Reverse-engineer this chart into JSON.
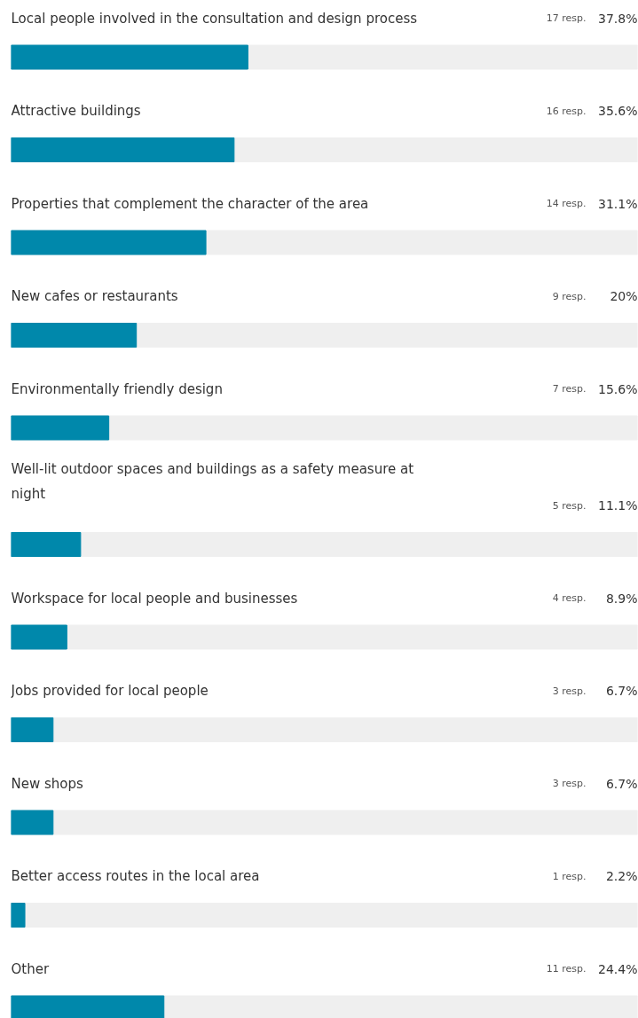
{
  "chart_data": {
    "type": "bar",
    "orientation": "horizontal",
    "color": "#0088ab",
    "categories": [
      "Local people involved in the consultation and design process",
      "Attractive buildings",
      "Properties that complement the character of the area",
      "New cafes or restaurants",
      "Environmentally friendly design",
      "Well-lit outdoor spaces and buildings as a safety measure at\nnight",
      "Workspace for local people and businesses",
      "Jobs provided for local people",
      "New shops",
      "Better access routes in the local area",
      "Other"
    ],
    "values": [
      37.8,
      35.6,
      31.1,
      20,
      15.6,
      11.1,
      8.9,
      6.7,
      6.7,
      2.2,
      24.4
    ],
    "value_labels": [
      "37.8%",
      "35.6%",
      "31.1%",
      "20%",
      "15.6%",
      "11.1%",
      "8.9%",
      "6.7%",
      "6.7%",
      "2.2%",
      "24.4%"
    ],
    "annotations": [
      "17 resp.",
      "16 resp.",
      "14 resp.",
      "9 resp.",
      "7 resp.",
      "5 resp.",
      "4 resp.",
      "3 resp.",
      "3 resp.",
      "1 resp.",
      "11 resp."
    ],
    "xlim": [
      0,
      100
    ],
    "tick_labels": false,
    "grid": false
  }
}
